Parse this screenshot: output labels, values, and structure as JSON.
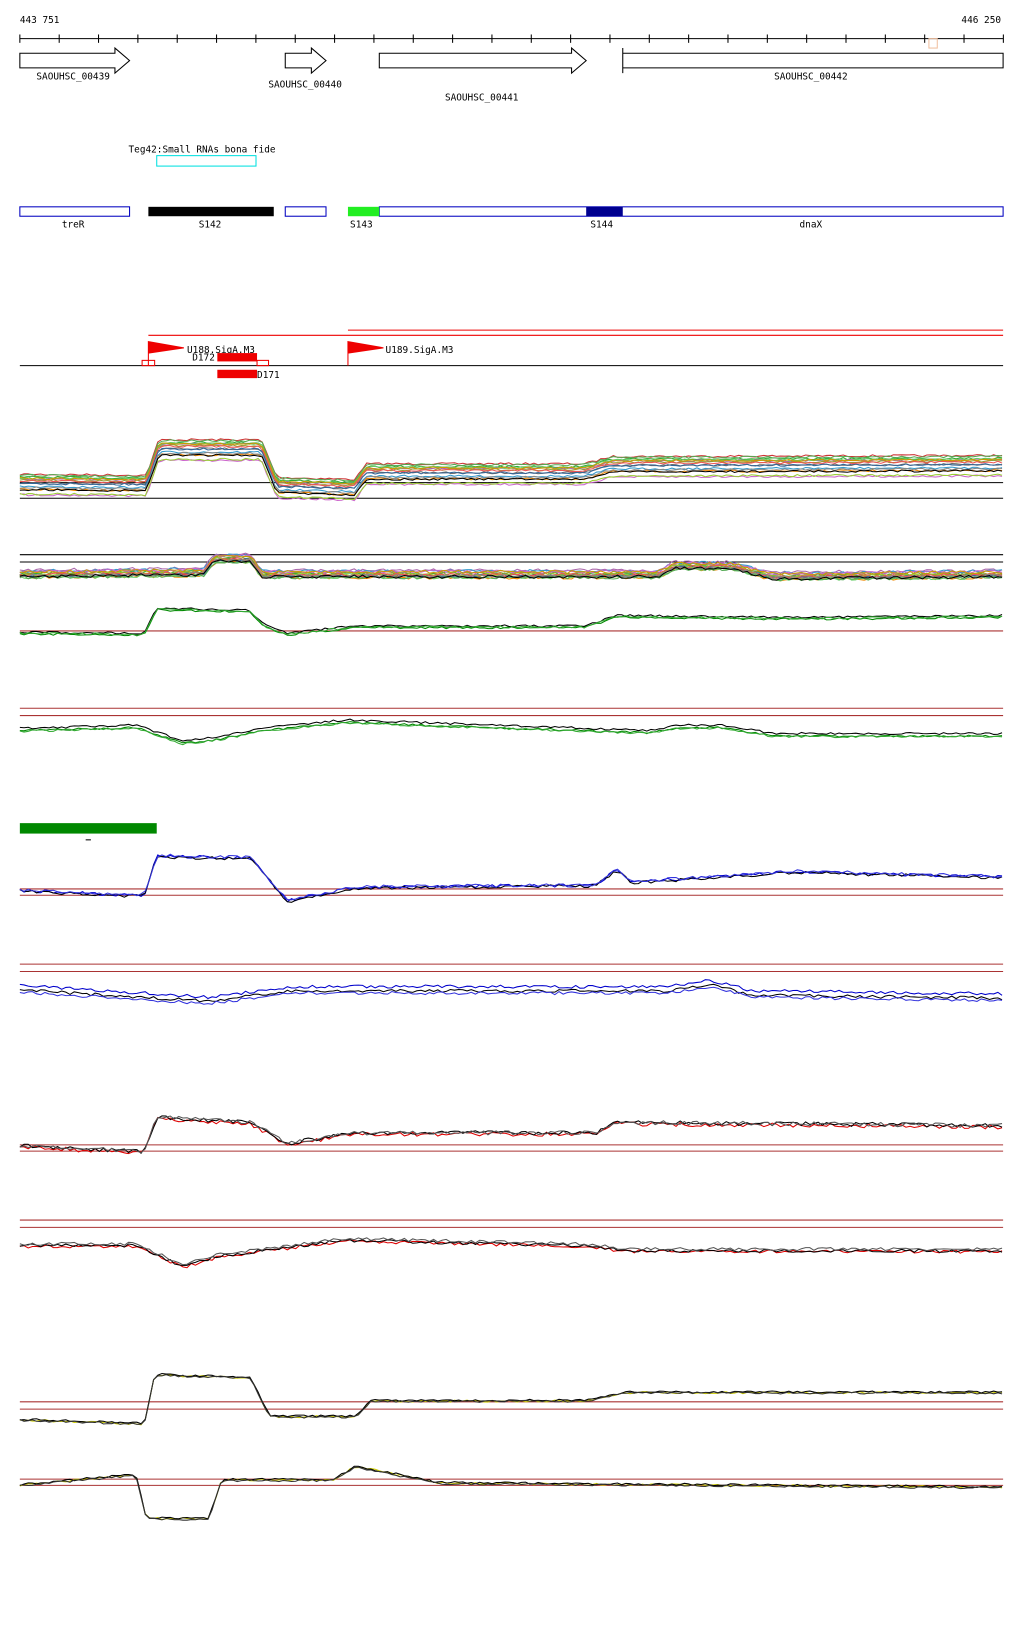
{
  "ruler": {
    "start": "443 751",
    "end": "446 250"
  },
  "genes": [
    {
      "label": "SAOUHSC_00439"
    },
    {
      "label": "SAOUHSC_00440"
    },
    {
      "label": "SAOUHSC_00441"
    },
    {
      "label": "SAOUHSC_00442"
    }
  ],
  "srna": {
    "label": "Teg42:Small RNAs bona fide"
  },
  "features": [
    "treR",
    "S142",
    "S143",
    "S144",
    "dnaX"
  ],
  "promoters": [
    "U188.SigA.M3",
    "U189.SigA.M3"
  ],
  "terminators": [
    "D172",
    "D171"
  ]
}
